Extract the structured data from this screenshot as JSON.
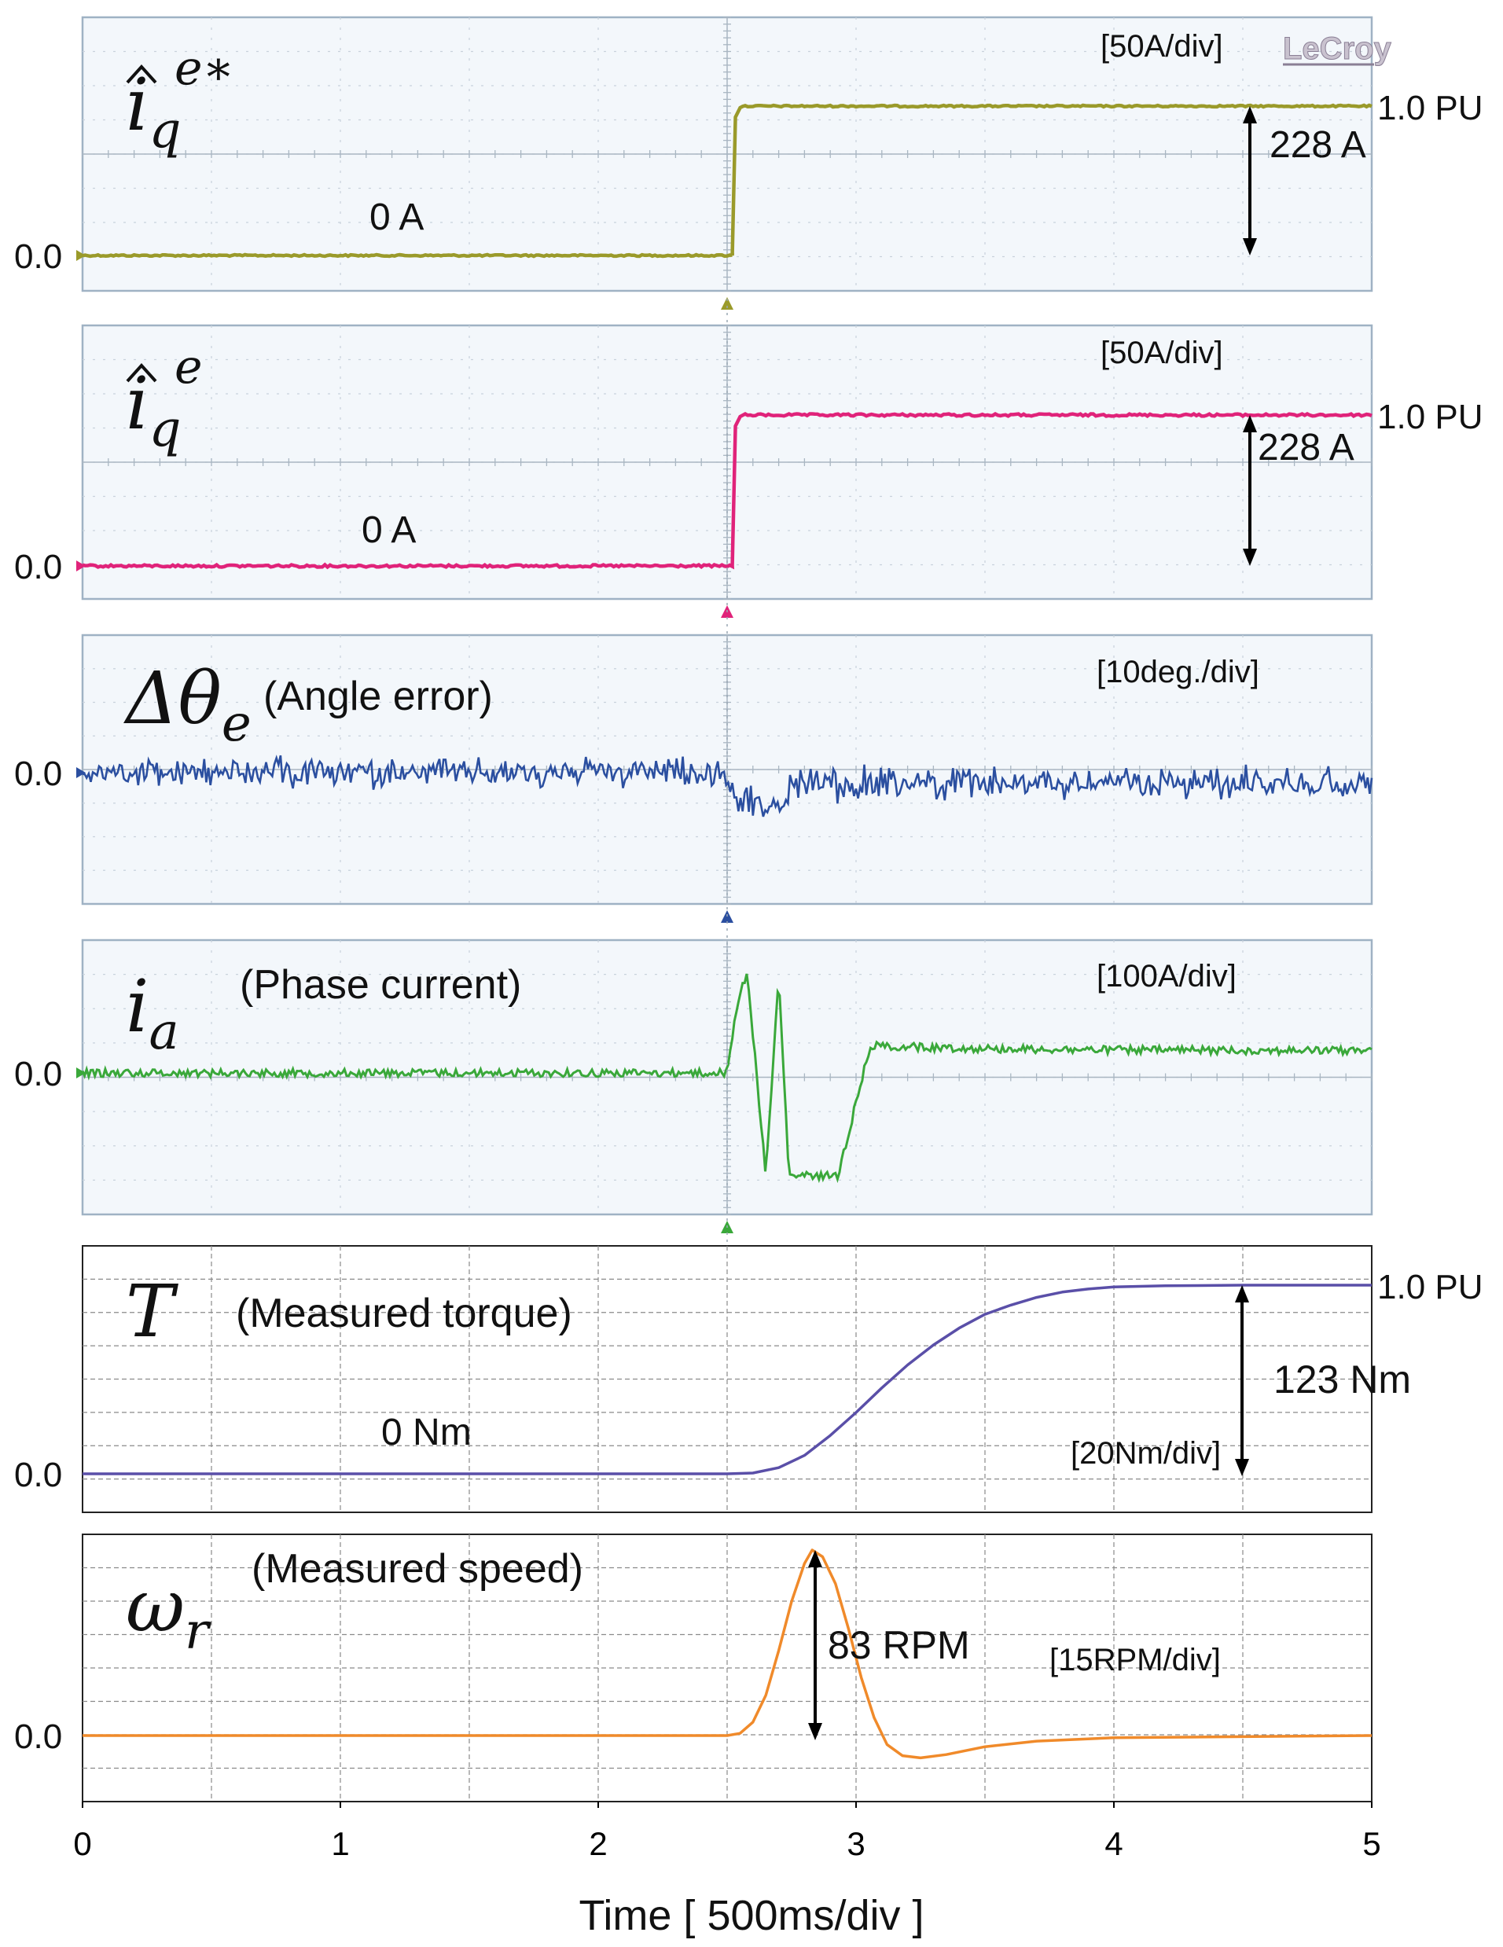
{
  "chart_data": {
    "type": "line",
    "title": "",
    "xlabel": "Time [ 500ms/div ]",
    "xlim": [
      0,
      5
    ],
    "x_ticks": [
      "0",
      "1",
      "2",
      "3",
      "4",
      "5"
    ],
    "scope_brand": "LeCroy",
    "panels": [
      {
        "id": "iqe_ref",
        "symbol": "îq e*",
        "symbol_main": "i",
        "symbol_sub": "q",
        "symbol_sup": "e∗",
        "label": "",
        "scale_text": "[50A/div]",
        "zero_label": "0.0",
        "level_label": "1.0 PU",
        "initial_value_text": "0 A",
        "step_text": "228 A",
        "color": "#9a9a2a",
        "background": "oscilloscope",
        "ylim": [
          -1.1,
          5.2
        ],
        "step": {
          "t": 2.52,
          "from": 0,
          "to": 228,
          "unit": "A"
        }
      },
      {
        "id": "iqe",
        "symbol": "îq e",
        "symbol_main": "i",
        "symbol_sub": "q",
        "symbol_sup": "e",
        "label": "",
        "scale_text": "[50A/div]",
        "zero_label": "0.0",
        "level_label": "1.0 PU",
        "initial_value_text": "0 A",
        "step_text": "228 A",
        "color": "#e0237a",
        "background": "oscilloscope",
        "ylim": [
          -1.1,
          5.2
        ],
        "step": {
          "t": 2.52,
          "from": 0,
          "to": 228,
          "unit": "A"
        }
      },
      {
        "id": "angle_error",
        "symbol": "Δθe",
        "symbol_main": "Δθ",
        "symbol_sub": "e",
        "label": "(Angle error)",
        "scale_text": "[10deg./div]",
        "zero_label": "0.0",
        "color": "#2b4fa0",
        "background": "oscilloscope",
        "noise_amplitude": 0.35,
        "transient": {
          "t": 2.55,
          "dip": -0.9
        }
      },
      {
        "id": "phase_current",
        "symbol": "ia",
        "symbol_main": "i",
        "symbol_sub": "a",
        "label": "(Phase current)",
        "scale_text": "[100A/div]",
        "zero_label": "0.0",
        "color": "#3aa83a",
        "background": "oscilloscope",
        "transient": {
          "t": 2.5,
          "peak": 2.8,
          "valley": -3.0,
          "settle": 0.65
        }
      },
      {
        "id": "torque",
        "symbol": "T",
        "symbol_main": "T",
        "symbol_sub": "",
        "label": "(Measured torque)",
        "scale_text": "[20Nm/div]",
        "zero_label": "0.0",
        "level_label": "1.0 PU",
        "initial_value_text": "0 Nm",
        "step_text": "123 Nm",
        "color": "#5a4fa8",
        "background": "grid",
        "final_value": 123,
        "unit": "Nm",
        "ylim": [
          0,
          140
        ],
        "curve_points": [
          [
            0,
            0
          ],
          [
            2.5,
            0
          ],
          [
            2.6,
            0.5
          ],
          [
            2.7,
            4
          ],
          [
            2.8,
            12
          ],
          [
            2.9,
            25
          ],
          [
            3.0,
            40
          ],
          [
            3.1,
            56
          ],
          [
            3.2,
            71
          ],
          [
            3.3,
            84
          ],
          [
            3.4,
            95
          ],
          [
            3.5,
            104
          ],
          [
            3.6,
            110
          ],
          [
            3.7,
            115
          ],
          [
            3.8,
            118.5
          ],
          [
            3.9,
            120.5
          ],
          [
            4.0,
            121.8
          ],
          [
            4.2,
            122.6
          ],
          [
            4.5,
            123
          ],
          [
            5,
            123
          ]
        ]
      },
      {
        "id": "speed",
        "symbol": "ωr",
        "symbol_main": "ω",
        "symbol_sub": "r",
        "label": "(Measured speed)",
        "scale_text": "[15RPM/div]",
        "zero_label": "0.0",
        "peak_text": "83 RPM",
        "color": "#f08a2a",
        "background": "grid",
        "peak_value": 83,
        "unit": "RPM",
        "ylim": [
          -20,
          90
        ],
        "curve_points": [
          [
            0,
            0
          ],
          [
            2.5,
            0
          ],
          [
            2.55,
            1
          ],
          [
            2.6,
            6
          ],
          [
            2.65,
            18
          ],
          [
            2.7,
            38
          ],
          [
            2.75,
            60
          ],
          [
            2.8,
            77
          ],
          [
            2.83,
            83
          ],
          [
            2.87,
            80
          ],
          [
            2.92,
            68
          ],
          [
            2.97,
            48
          ],
          [
            3.02,
            26
          ],
          [
            3.07,
            8
          ],
          [
            3.12,
            -4
          ],
          [
            3.18,
            -9
          ],
          [
            3.25,
            -10
          ],
          [
            3.35,
            -8.5
          ],
          [
            3.5,
            -5
          ],
          [
            3.7,
            -2.5
          ],
          [
            4.0,
            -1
          ],
          [
            4.5,
            -0.5
          ],
          [
            5,
            0
          ]
        ]
      }
    ]
  }
}
